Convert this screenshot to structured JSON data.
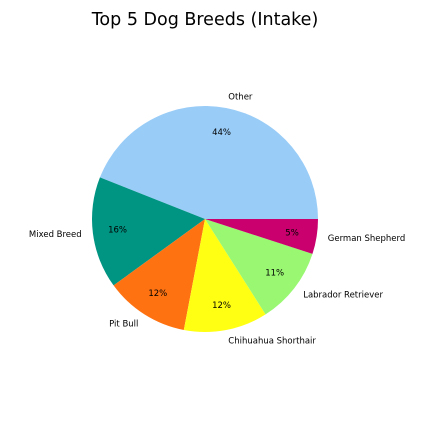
{
  "chart_data": {
    "type": "pie",
    "title": "Top 5 Dog Breeds (Intake)",
    "slices": [
      {
        "label": "Other",
        "value": 44,
        "pct_label": "44%",
        "color": "#99ccf7"
      },
      {
        "label": "Mixed Breed",
        "value": 16,
        "pct_label": "16%",
        "color": "#009482"
      },
      {
        "label": "Pit Bull",
        "value": 12,
        "pct_label": "12%",
        "color": "#ff7212"
      },
      {
        "label": "Chihuahua Shorthair",
        "value": 12,
        "pct_label": "12%",
        "color": "#ffff14"
      },
      {
        "label": "Labrador Retriever",
        "value": 11,
        "pct_label": "11%",
        "color": "#99f772"
      },
      {
        "label": "German Shepherd",
        "value": 5,
        "pct_label": "5%",
        "color": "#c9006d"
      }
    ],
    "start_angle_deg": 0,
    "direction": "counterclockwise",
    "legend": "none"
  }
}
